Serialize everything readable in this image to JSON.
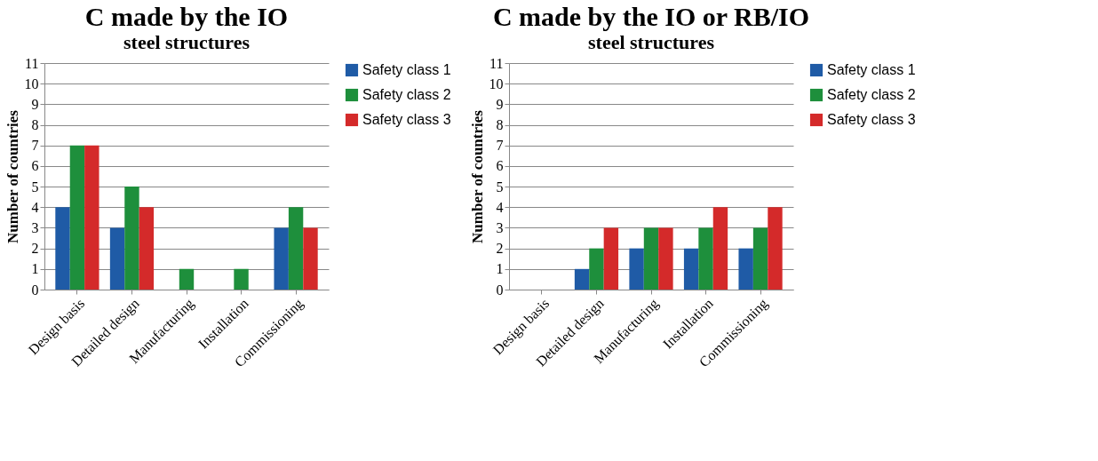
{
  "chart_data": [
    {
      "type": "bar",
      "title": "C made by the IO",
      "subtitle": "steel structures",
      "ylabel": "Number of countries",
      "categories": [
        "Design basis",
        "Detailed design",
        "Manufacturing",
        "Installation",
        "Commissioning"
      ],
      "series": [
        {
          "name": "Safety class 1",
          "color": "#1f5ba6",
          "values": [
            4,
            3,
            0,
            0,
            3
          ]
        },
        {
          "name": "Safety class 2",
          "color": "#1e8f3c",
          "values": [
            7,
            5,
            1,
            1,
            4
          ]
        },
        {
          "name": "Safety class 3",
          "color": "#d42a2a",
          "values": [
            7,
            4,
            0,
            0,
            3
          ]
        }
      ],
      "ylim": [
        0,
        11
      ],
      "yticks": [
        0,
        1,
        2,
        3,
        4,
        5,
        6,
        7,
        8,
        9,
        10,
        11
      ],
      "grid": "y",
      "legend": "right"
    },
    {
      "type": "bar",
      "title": "C made by the IO or RB/IO",
      "subtitle": "steel structures",
      "ylabel": "Number of countries",
      "categories": [
        "Design basis",
        "Detailed design",
        "Manufacturing",
        "Installation",
        "Commissioning"
      ],
      "series": [
        {
          "name": "Safety class 1",
          "color": "#1f5ba6",
          "values": [
            0,
            1,
            2,
            2,
            2
          ]
        },
        {
          "name": "Safety class 2",
          "color": "#1e8f3c",
          "values": [
            0,
            2,
            3,
            3,
            3
          ]
        },
        {
          "name": "Safety class 3",
          "color": "#d42a2a",
          "values": [
            0,
            3,
            3,
            4,
            4
          ]
        }
      ],
      "ylim": [
        0,
        11
      ],
      "yticks": [
        0,
        1,
        2,
        3,
        4,
        5,
        6,
        7,
        8,
        9,
        10,
        11
      ],
      "grid": "y",
      "legend": "right"
    }
  ]
}
